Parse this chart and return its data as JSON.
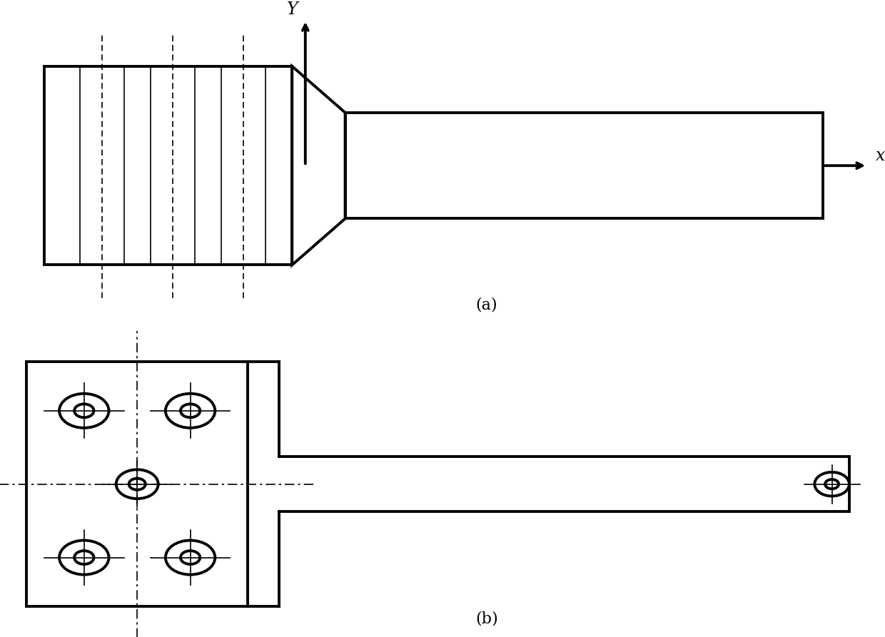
{
  "bg_color": "#ffffff",
  "line_color": "#000000",
  "lw_thick": 2.8,
  "lw_thin": 1.2,
  "lw_dash": 1.2,
  "label_a": "(a)",
  "label_b": "(b)",
  "label_x": "x",
  "label_y": "Y",
  "fig_width": 12.4,
  "fig_height": 8.93
}
